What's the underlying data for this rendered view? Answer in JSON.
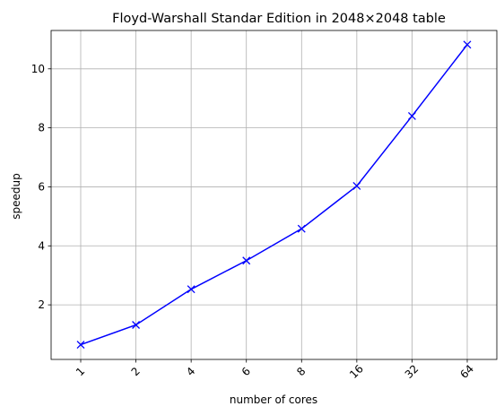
{
  "chart_data": {
    "type": "line",
    "title": "Floyd-Warshall Standar Edition in 2048×2048 table",
    "xlabel": "number of cores",
    "ylabel": "speedup",
    "categories": [
      "1",
      "2",
      "4",
      "6",
      "8",
      "16",
      "32",
      "64"
    ],
    "series": [
      {
        "values": [
          0.65,
          1.32,
          2.53,
          3.5,
          4.58,
          6.03,
          8.4,
          10.82
        ],
        "color": "#0000ff",
        "marker": "x"
      }
    ],
    "yticks": [
      2,
      4,
      6,
      8,
      10
    ],
    "ylim": [
      0.15,
      11.3
    ],
    "grid": true,
    "legend": "none",
    "xtick_rotation": -45
  }
}
